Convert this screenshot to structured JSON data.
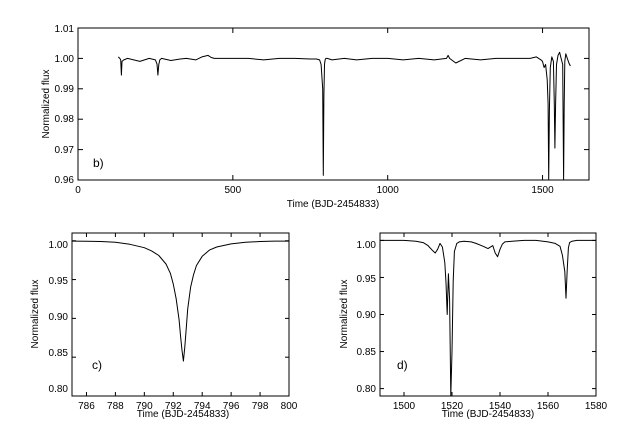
{
  "chart_data": [
    {
      "id": "b",
      "type": "line",
      "panel_label": "b)",
      "xlabel": "Time (BJD-2454833)",
      "ylabel": "Normalized flux",
      "xlim": [
        0,
        1650
      ],
      "ylim": [
        0.96,
        1.01
      ],
      "xticks": [
        0,
        500,
        1000,
        1500
      ],
      "yticks": [
        0.96,
        0.97,
        0.98,
        0.99,
        1.0
      ],
      "ytick_labels": [
        "0.96",
        "0.97",
        "0.98",
        "0.99",
        "1.00"
      ],
      "top_tick_label": "1.01",
      "grid": false,
      "series": [
        {
          "x": [
            130,
            135,
            138,
            140,
            142,
            148,
            160,
            180,
            200,
            230,
            250,
            255,
            258,
            261,
            264,
            270,
            300,
            330,
            350,
            380,
            400,
            420,
            430,
            440,
            500,
            550,
            600,
            650,
            700,
            750,
            770,
            780,
            785,
            790,
            792,
            794,
            796,
            798,
            800,
            805,
            820,
            860,
            900,
            950,
            1000,
            1050,
            1100,
            1150,
            1190,
            1195,
            1200,
            1220,
            1250,
            1300,
            1350,
            1400,
            1440,
            1460,
            1480,
            1495,
            1500,
            1505,
            1510,
            1515,
            1518,
            1520,
            1522,
            1525,
            1530,
            1535,
            1538,
            1540,
            1542,
            1545,
            1550,
            1555,
            1560,
            1565,
            1568,
            1570,
            1572,
            1575,
            1580,
            1585,
            1590
          ],
          "y": [
            1.0005,
            1.0,
            0.9995,
            0.9945,
            0.999,
            0.9995,
            1.0,
            0.9995,
            0.999,
            1.0,
            0.9995,
            0.9982,
            0.9945,
            0.998,
            0.9995,
            1.0,
            0.9993,
            0.9998,
            1.0,
            0.9995,
            1.0005,
            1.001,
            1.0003,
            1.0,
            1.0,
            1.0,
            0.9995,
            1.0,
            1.0,
            0.9998,
            0.9998,
            0.9995,
            0.998,
            0.99,
            0.9615,
            0.988,
            0.998,
            0.9995,
            1.0,
            1.0,
            0.9995,
            1.0,
            0.9995,
            1.0,
            1.0,
            0.9995,
            1.0,
            0.9995,
            1.0,
            1.001,
            1.0,
            0.9985,
            1.0,
            0.9995,
            1.0,
            1.0,
            1.0,
            1.0,
            1.0005,
            0.9995,
            0.999,
            0.997,
            0.998,
            0.993,
            0.985,
            0.96,
            0.983,
            0.997,
            1.0005,
            0.999,
            0.985,
            0.9705,
            0.985,
            0.998,
            1.001,
            1.002,
            1.0,
            0.998,
            0.96,
            0.985,
            0.999,
            1.0015,
            1.0,
            0.9985,
            0.9975
          ]
        }
      ]
    },
    {
      "id": "c",
      "type": "line",
      "panel_label": "c)",
      "xlabel": "Time (BJD-2454833)",
      "ylabel": "Normalized flux",
      "xlim": [
        785,
        800
      ],
      "ylim": [
        0.8,
        1.01
      ],
      "xticks": [
        786,
        788,
        790,
        792,
        794,
        796,
        798,
        800
      ],
      "yticks": [
        0.8,
        0.85,
        0.9,
        0.95,
        1.0
      ],
      "ytick_labels": [
        "0.80",
        "0.85",
        "0.90",
        "0.95",
        "1.00"
      ],
      "grid": false,
      "series": [
        {
          "x": [
            785,
            786,
            787,
            788,
            789,
            790,
            790.5,
            791,
            791.5,
            791.8,
            792,
            792.2,
            792.4,
            792.5,
            792.6,
            792.7,
            792.8,
            792.9,
            793,
            793.2,
            793.4,
            793.6,
            794,
            794.5,
            795,
            796,
            797,
            798,
            799,
            800
          ],
          "y": [
            0.9995,
            0.9993,
            0.999,
            0.998,
            0.9955,
            0.991,
            0.987,
            0.981,
            0.97,
            0.958,
            0.944,
            0.925,
            0.898,
            0.878,
            0.86,
            0.845,
            0.863,
            0.888,
            0.912,
            0.94,
            0.956,
            0.968,
            0.98,
            0.988,
            0.992,
            0.996,
            0.998,
            0.999,
            0.9995,
            0.9995
          ]
        }
      ]
    },
    {
      "id": "d",
      "type": "line",
      "panel_label": "d)",
      "xlabel": "Time (BJD-2454833)",
      "ylabel": "Normalized flux",
      "xlim": [
        1490,
        1580
      ],
      "ylim": [
        0.79,
        1.01
      ],
      "xticks": [
        1500,
        1520,
        1540,
        1560,
        1580
      ],
      "yticks": [
        0.8,
        0.85,
        0.9,
        0.95,
        1.0
      ],
      "ytick_labels": [
        "0.80",
        "0.85",
        "0.90",
        "0.95",
        "1.00"
      ],
      "grid": false,
      "series": [
        {
          "x": [
            1490,
            1495,
            1500,
            1505,
            1508,
            1510,
            1512,
            1513,
            1514,
            1515,
            1516,
            1517,
            1517.5,
            1518,
            1518.5,
            1519,
            1519.5,
            1520,
            1520.5,
            1521,
            1522,
            1523,
            1525,
            1528,
            1530,
            1533,
            1535,
            1537,
            1538,
            1539,
            1540,
            1541,
            1542,
            1545,
            1550,
            1555,
            1560,
            1563,
            1565,
            1566,
            1567,
            1567.5,
            1568,
            1568.5,
            1569,
            1570,
            1572,
            1575,
            1580
          ],
          "y": [
            1.0,
            1.0,
            1.0,
            0.999,
            0.997,
            0.993,
            0.986,
            0.983,
            0.988,
            0.996,
            0.991,
            0.97,
            0.943,
            0.9,
            0.955,
            0.92,
            0.79,
            0.85,
            0.945,
            0.985,
            0.996,
            0.998,
            0.999,
            0.998,
            0.996,
            0.992,
            0.989,
            0.993,
            0.983,
            0.978,
            0.988,
            0.995,
            0.998,
            0.999,
            1.0,
            1.0,
            0.998,
            0.996,
            0.992,
            0.98,
            0.958,
            0.922,
            0.96,
            0.99,
            0.997,
            0.999,
            1.0,
            1.0,
            1.0
          ]
        }
      ]
    }
  ]
}
